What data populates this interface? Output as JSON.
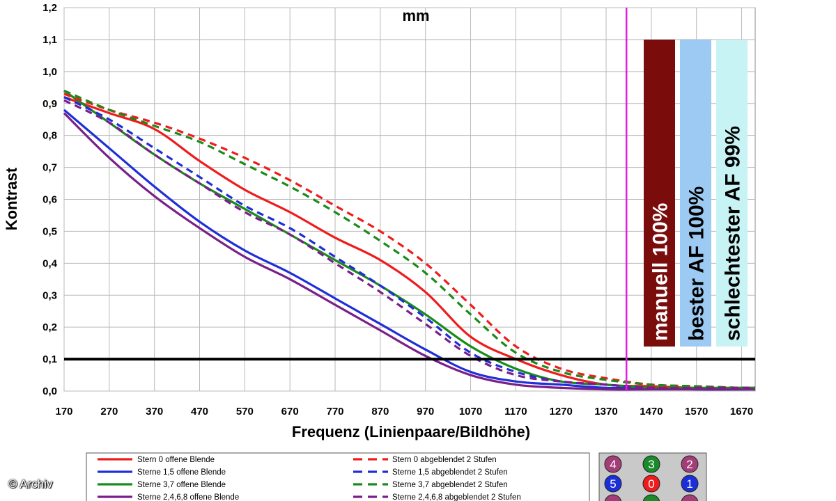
{
  "chart_data": {
    "type": "line",
    "title": "mm",
    "xlabel": "Frequenz (Linienpaare/Bildhöhe)",
    "ylabel": "Kontrast",
    "xlim": [
      170,
      1700
    ],
    "ylim": [
      0,
      1.2
    ],
    "x_ticks": [
      "170",
      "270",
      "370",
      "470",
      "570",
      "670",
      "770",
      "870",
      "970",
      "1070",
      "1170",
      "1270",
      "1370",
      "1470",
      "1570",
      "1670"
    ],
    "y_ticks": [
      "0,0",
      "0,1",
      "0,2",
      "0,3",
      "0,4",
      "0,5",
      "0,6",
      "0,7",
      "0,8",
      "0,9",
      "1,0",
      "1,1",
      "1,2"
    ],
    "x": [
      170,
      270,
      370,
      470,
      570,
      670,
      770,
      870,
      970,
      1070,
      1170,
      1270,
      1370,
      1470,
      1570,
      1670,
      1700
    ],
    "series": [
      {
        "name": "Stern 0 offene Blende",
        "color": "#ee1c1c",
        "dash": false,
        "values": [
          0.92,
          0.87,
          0.82,
          0.72,
          0.63,
          0.56,
          0.48,
          0.41,
          0.31,
          0.17,
          0.1,
          0.05,
          0.02,
          0.015,
          0.01,
          0.01,
          0.01
        ]
      },
      {
        "name": "Sterne 1,5 offene Blende",
        "color": "#1f2fd8",
        "dash": false,
        "values": [
          0.88,
          0.76,
          0.64,
          0.53,
          0.44,
          0.37,
          0.29,
          0.21,
          0.13,
          0.06,
          0.03,
          0.02,
          0.01,
          0.01,
          0.005,
          0.005,
          0.005
        ]
      },
      {
        "name": "Sterne 3,7 offene Blende",
        "color": "#1a8a1a",
        "dash": false,
        "values": [
          0.94,
          0.84,
          0.74,
          0.65,
          0.57,
          0.49,
          0.41,
          0.33,
          0.24,
          0.14,
          0.07,
          0.03,
          0.02,
          0.01,
          0.01,
          0.01,
          0.01
        ]
      },
      {
        "name": "Sterne 2,4,6,8 offene Blende",
        "color": "#7a1f8a",
        "dash": false,
        "values": [
          0.87,
          0.73,
          0.61,
          0.51,
          0.42,
          0.35,
          0.27,
          0.19,
          0.11,
          0.05,
          0.02,
          0.01,
          0.005,
          0.005,
          0.005,
          0.005,
          0.005
        ]
      },
      {
        "name": "Stern 0 abgeblendet 2 Stufen",
        "color": "#ee1c1c",
        "dash": true,
        "values": [
          0.93,
          0.88,
          0.84,
          0.79,
          0.73,
          0.66,
          0.58,
          0.5,
          0.4,
          0.27,
          0.14,
          0.07,
          0.04,
          0.02,
          0.015,
          0.01,
          0.01
        ]
      },
      {
        "name": "Sterne 1,5 abgeblendet 2 Stufen",
        "color": "#1f2fd8",
        "dash": true,
        "values": [
          0.92,
          0.85,
          0.76,
          0.67,
          0.58,
          0.51,
          0.42,
          0.33,
          0.23,
          0.12,
          0.06,
          0.03,
          0.02,
          0.01,
          0.01,
          0.01,
          0.01
        ]
      },
      {
        "name": "Sterne 3,7 abgeblendet 2 Stufen",
        "color": "#1a8a1a",
        "dash": true,
        "values": [
          0.94,
          0.88,
          0.83,
          0.78,
          0.71,
          0.64,
          0.56,
          0.47,
          0.37,
          0.24,
          0.12,
          0.06,
          0.035,
          0.02,
          0.015,
          0.01,
          0.01
        ]
      },
      {
        "name": "Sterne 2,4,6,8 abgeblendet 2 Stufen",
        "color": "#7a1f8a",
        "dash": true,
        "values": [
          0.91,
          0.84,
          0.74,
          0.65,
          0.56,
          0.49,
          0.4,
          0.31,
          0.21,
          0.11,
          0.05,
          0.03,
          0.02,
          0.01,
          0.01,
          0.01,
          0.01
        ]
      }
    ],
    "reference_line": {
      "y": 0.1,
      "color": "#000000"
    },
    "marker_line": {
      "x": 1415,
      "color": "#e020e0"
    },
    "bars": [
      {
        "label": "manuell 100%",
        "color": "#7a0c0c",
        "text_color": "#ffffff",
        "value": 1.1
      },
      {
        "label": "bester AF 100%",
        "color": "#9ccaf2",
        "text_color": "#000000",
        "value": 1.1
      },
      {
        "label": "schlechtester AF 99%",
        "color": "#c8f3f4",
        "text_color": "#000000",
        "value": 1.1
      }
    ],
    "grid": true,
    "legend_placement": "bottom"
  },
  "star_panel": {
    "dots": [
      {
        "num": "4",
        "color": "#a23d78"
      },
      {
        "num": "3",
        "color": "#1a8a2a"
      },
      {
        "num": "2",
        "color": "#a23d78"
      },
      {
        "num": "5",
        "color": "#1a2fd8"
      },
      {
        "num": "0",
        "color": "#ee1c1c"
      },
      {
        "num": "1",
        "color": "#1a2fd8"
      },
      {
        "num": "",
        "color": "#a23d78"
      },
      {
        "num": "",
        "color": "#1a8a2a"
      },
      {
        "num": "",
        "color": "#a23d78"
      }
    ]
  },
  "copyright": "© Archiv"
}
